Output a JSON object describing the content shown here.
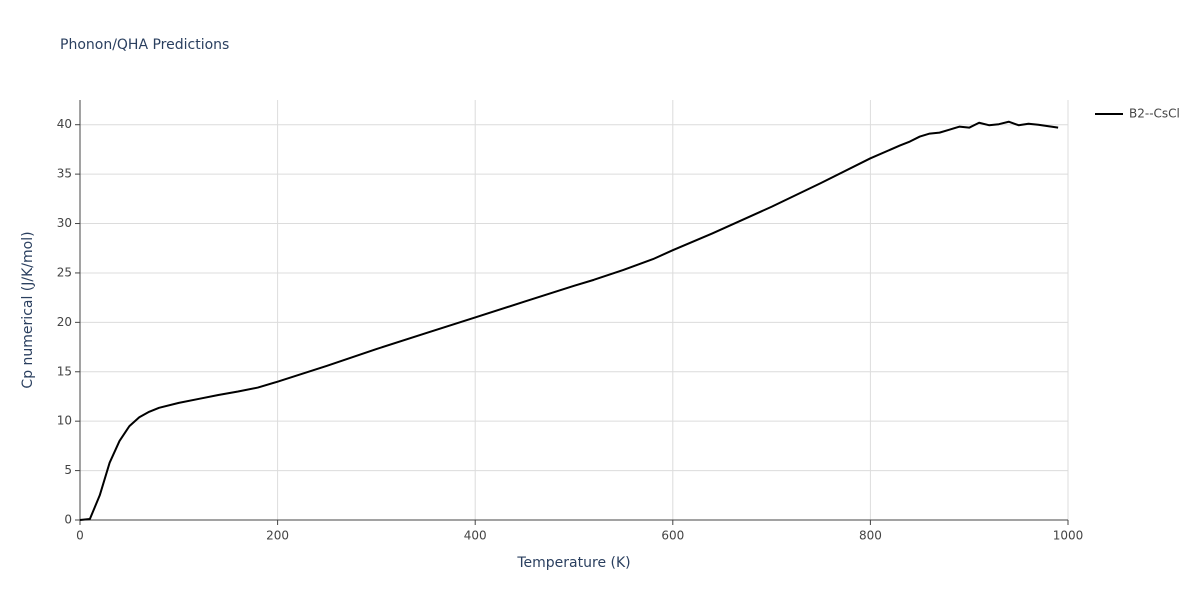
{
  "chart_data": {
    "type": "line",
    "title": "Phonon/QHA Predictions",
    "x_label": "Temperature (K)",
    "y_label": "Cp numerical (J/K/mol)",
    "x": [
      0,
      10,
      20,
      30,
      40,
      50,
      60,
      70,
      80,
      100,
      120,
      140,
      160,
      180,
      200,
      250,
      300,
      350,
      400,
      450,
      500,
      520,
      550,
      580,
      600,
      640,
      700,
      750,
      800,
      830,
      840,
      850,
      860,
      870,
      880,
      890,
      900,
      910,
      920,
      930,
      940,
      950,
      960,
      970,
      990
    ],
    "series": [
      {
        "name": "B2--CsCl",
        "color": "#000000",
        "values": [
          0,
          0.1,
          2.5,
          5.8,
          8.0,
          9.5,
          10.4,
          10.95,
          11.35,
          11.85,
          12.25,
          12.65,
          13.0,
          13.4,
          14.0,
          15.6,
          17.3,
          18.9,
          20.5,
          22.1,
          23.7,
          24.3,
          25.3,
          26.4,
          27.3,
          29.0,
          31.7,
          34.1,
          36.6,
          37.9,
          38.3,
          38.8,
          39.1,
          39.2,
          39.5,
          39.8,
          39.7,
          40.2,
          39.95,
          40.05,
          40.3,
          39.95,
          40.1,
          40.0,
          39.7
        ]
      }
    ],
    "xlim": [
      0,
      1000
    ],
    "xticks": [
      0,
      200,
      400,
      600,
      800,
      1000
    ],
    "ylim": [
      0,
      42.5
    ],
    "yticks": [
      0,
      5,
      10,
      15,
      20,
      25,
      30,
      35,
      40
    ],
    "grid": true,
    "legend": "right"
  }
}
